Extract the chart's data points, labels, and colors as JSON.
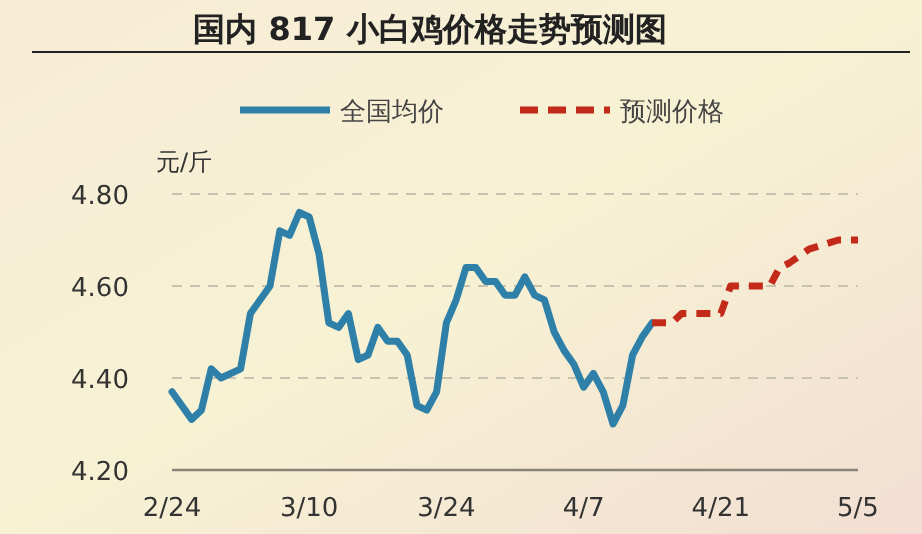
{
  "chart_data": {
    "type": "line",
    "title": "国内 817 小白鸡价格走势预测图",
    "ylabel": "元/斤",
    "xlim": [
      "--02-24",
      "--05-05"
    ],
    "xticks": [
      {
        "value": "--02-24",
        "label": "2/24"
      },
      {
        "value": "--03-10",
        "label": "3/10"
      },
      {
        "value": "--03-24",
        "label": "3/24"
      },
      {
        "value": "--04-07",
        "label": "4/7"
      },
      {
        "value": "--04-21",
        "label": "4/21"
      },
      {
        "value": "--05-05",
        "label": "5/5"
      }
    ],
    "ylim": [
      4.2,
      4.8
    ],
    "yticks": [
      {
        "value": 4.2,
        "label": "4.20"
      },
      {
        "value": 4.4,
        "label": "4.40"
      },
      {
        "value": 4.6,
        "label": "4.60"
      },
      {
        "value": 4.8,
        "label": "4.80"
      }
    ],
    "grid": "y",
    "legend": "top",
    "marker": "none",
    "series": [
      {
        "name": "全国均价",
        "color": "#2e80a8",
        "line_style": "solid",
        "x": [
          "--02-24",
          "--02-26",
          "--02-27",
          "--02-28",
          "--03-01",
          "--03-03",
          "--03-04",
          "--03-06",
          "--03-07",
          "--03-08",
          "--03-09",
          "--03-10",
          "--03-11",
          "--03-12",
          "--03-13",
          "--03-14",
          "--03-15",
          "--03-16",
          "--03-17",
          "--03-18",
          "--03-19",
          "--03-20",
          "--03-21",
          "--03-22",
          "--03-23",
          "--03-24",
          "--03-25",
          "--03-26",
          "--03-27",
          "--03-28",
          "--03-29",
          "--03-30",
          "--03-31",
          "--04-01",
          "--04-02",
          "--04-03",
          "--04-04",
          "--04-05",
          "--04-06",
          "--04-07",
          "--04-08",
          "--04-09",
          "--04-10",
          "--04-11",
          "--04-12",
          "--04-13",
          "--04-14"
        ],
        "values": [
          4.37,
          4.31,
          4.33,
          4.42,
          4.4,
          4.42,
          4.54,
          4.6,
          4.72,
          4.71,
          4.76,
          4.75,
          4.67,
          4.52,
          4.51,
          4.54,
          4.44,
          4.45,
          4.51,
          4.48,
          4.48,
          4.45,
          4.34,
          4.33,
          4.37,
          4.52,
          4.57,
          4.64,
          4.64,
          4.61,
          4.61,
          4.58,
          4.58,
          4.62,
          4.58,
          4.57,
          4.5,
          4.46,
          4.43,
          4.38,
          4.41,
          4.37,
          4.3,
          4.34,
          4.45,
          4.49,
          4.52
        ]
      },
      {
        "name": "预测价格",
        "color": "#c42a1a",
        "line_style": "dashed",
        "x": [
          "--04-14",
          "--04-16",
          "--04-17",
          "--04-21",
          "--04-22",
          "--04-26",
          "--04-27",
          "--04-28",
          "--04-30",
          "--05-03",
          "--05-05"
        ],
        "values": [
          4.52,
          4.52,
          4.54,
          4.54,
          4.6,
          4.6,
          4.64,
          4.65,
          4.68,
          4.7,
          4.7
        ]
      }
    ]
  }
}
